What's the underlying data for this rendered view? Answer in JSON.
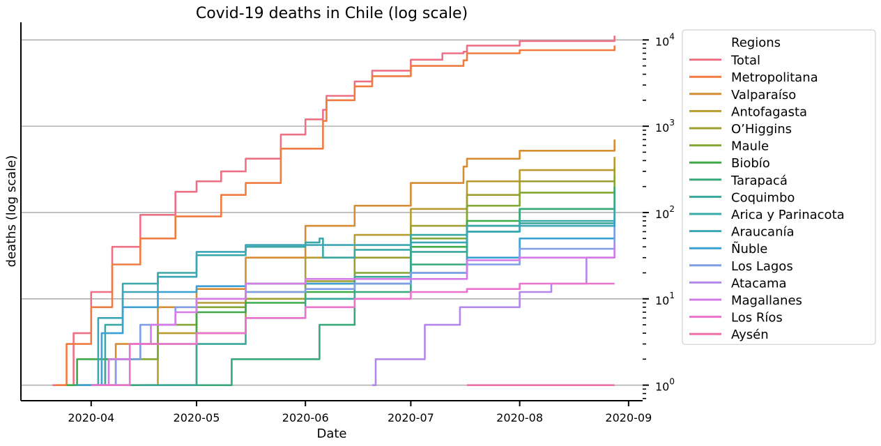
{
  "chart_data": {
    "type": "line",
    "title": "Covid-19 deaths in Chile (log scale)",
    "xlabel": "Date",
    "ylabel": "deaths (log scale)",
    "y_scale": "log",
    "y_axis_side": "right",
    "xlim": [
      "2020-03-12",
      "2020-09-05"
    ],
    "ylim": [
      0.66,
      16000
    ],
    "x_ticks": [
      "2020-04",
      "2020-05",
      "2020-06",
      "2020-07",
      "2020-08",
      "2020-09"
    ],
    "y_ticks": [
      1,
      10,
      100,
      1000,
      10000
    ],
    "y_tick_labels": [
      {
        "base": "10",
        "exp": "0"
      },
      {
        "base": "10",
        "exp": "1"
      },
      {
        "base": "10",
        "exp": "2"
      },
      {
        "base": "10",
        "exp": "3"
      },
      {
        "base": "10",
        "exp": "4"
      }
    ],
    "grid": "horizontal major",
    "legend": {
      "title": "Regions",
      "placement": "outside right"
    },
    "series": [
      {
        "name": "Total",
        "color": "#ee7085",
        "points": [
          [
            "2020-03-21",
            1
          ],
          [
            "2020-03-27",
            4
          ],
          [
            "2020-04-01",
            12
          ],
          [
            "2020-04-07",
            40
          ],
          [
            "2020-04-15",
            94
          ],
          [
            "2020-04-25",
            174
          ],
          [
            "2020-05-01",
            230
          ],
          [
            "2020-05-08",
            300
          ],
          [
            "2020-05-15",
            421
          ],
          [
            "2020-05-25",
            800
          ],
          [
            "2020-06-01",
            1200
          ],
          [
            "2020-06-06",
            1550
          ],
          [
            "2020-06-07",
            2250
          ],
          [
            "2020-06-15",
            3300
          ],
          [
            "2020-06-20",
            4400
          ],
          [
            "2020-07-01",
            5900
          ],
          [
            "2020-07-10",
            7000
          ],
          [
            "2020-07-16",
            7300
          ],
          [
            "2020-07-17",
            8600
          ],
          [
            "2020-08-01",
            9700
          ],
          [
            "2020-08-28",
            11200
          ]
        ]
      },
      {
        "name": "Metropolitana",
        "color": "#ef7b41",
        "points": [
          [
            "2020-03-22",
            1
          ],
          [
            "2020-03-25",
            3
          ],
          [
            "2020-04-01",
            8
          ],
          [
            "2020-04-07",
            25
          ],
          [
            "2020-04-15",
            50
          ],
          [
            "2020-04-25",
            90
          ],
          [
            "2020-05-08",
            160
          ],
          [
            "2020-05-15",
            220
          ],
          [
            "2020-05-25",
            550
          ],
          [
            "2020-06-06",
            1150
          ],
          [
            "2020-06-07",
            2000
          ],
          [
            "2020-06-15",
            2900
          ],
          [
            "2020-06-20",
            3800
          ],
          [
            "2020-07-01",
            5000
          ],
          [
            "2020-07-16",
            5800
          ],
          [
            "2020-07-17",
            7000
          ],
          [
            "2020-08-01",
            7600
          ],
          [
            "2020-08-28",
            8600
          ]
        ]
      },
      {
        "name": "Valparaíso",
        "color": "#d68c32",
        "points": [
          [
            "2020-03-31",
            1
          ],
          [
            "2020-04-08",
            3
          ],
          [
            "2020-04-20",
            8
          ],
          [
            "2020-05-01",
            13
          ],
          [
            "2020-05-15",
            30
          ],
          [
            "2020-06-01",
            70
          ],
          [
            "2020-06-15",
            120
          ],
          [
            "2020-07-01",
            220
          ],
          [
            "2020-07-16",
            340
          ],
          [
            "2020-07-17",
            420
          ],
          [
            "2020-08-01",
            520
          ],
          [
            "2020-08-28",
            700
          ]
        ]
      },
      {
        "name": "Antofagasta",
        "color": "#b99c30",
        "points": [
          [
            "2020-04-08",
            1
          ],
          [
            "2020-04-20",
            4
          ],
          [
            "2020-05-01",
            9
          ],
          [
            "2020-05-15",
            15
          ],
          [
            "2020-06-01",
            30
          ],
          [
            "2020-06-15",
            55
          ],
          [
            "2020-07-01",
            110
          ],
          [
            "2020-07-17",
            230
          ],
          [
            "2020-08-01",
            310
          ],
          [
            "2020-08-28",
            440
          ]
        ]
      },
      {
        "name": "O’Higgins",
        "color": "#9e9f31",
        "points": [
          [
            "2020-04-22",
            1
          ],
          [
            "2020-05-01",
            4
          ],
          [
            "2020-05-15",
            10
          ],
          [
            "2020-06-01",
            16
          ],
          [
            "2020-06-15",
            30
          ],
          [
            "2020-07-01",
            70
          ],
          [
            "2020-07-17",
            160
          ],
          [
            "2020-08-01",
            230
          ],
          [
            "2020-08-28",
            340
          ]
        ]
      },
      {
        "name": "Maule",
        "color": "#84a634",
        "points": [
          [
            "2020-03-27",
            1
          ],
          [
            "2020-04-05",
            2
          ],
          [
            "2020-04-20",
            5
          ],
          [
            "2020-05-01",
            8
          ],
          [
            "2020-05-15",
            12
          ],
          [
            "2020-06-01",
            15
          ],
          [
            "2020-06-15",
            20
          ],
          [
            "2020-07-01",
            50
          ],
          [
            "2020-07-17",
            120
          ],
          [
            "2020-08-01",
            170
          ],
          [
            "2020-08-28",
            260
          ]
        ]
      },
      {
        "name": "Biobío",
        "color": "#3eaa48",
        "points": [
          [
            "2020-03-25",
            1
          ],
          [
            "2020-03-28",
            2
          ],
          [
            "2020-04-15",
            3
          ],
          [
            "2020-05-01",
            7
          ],
          [
            "2020-05-15",
            9
          ],
          [
            "2020-06-01",
            12
          ],
          [
            "2020-06-15",
            15
          ],
          [
            "2020-07-01",
            40
          ],
          [
            "2020-07-17",
            80
          ],
          [
            "2020-08-01",
            110
          ],
          [
            "2020-08-28",
            200
          ]
        ]
      },
      {
        "name": "Tarapacá",
        "color": "#37a97d",
        "points": [
          [
            "2020-03-27",
            1
          ],
          [
            "2020-05-10",
            1
          ],
          [
            "2020-05-11",
            2
          ],
          [
            "2020-06-01",
            2
          ],
          [
            "2020-06-05",
            5
          ],
          [
            "2020-06-15",
            12
          ],
          [
            "2020-07-01",
            25
          ],
          [
            "2020-07-17",
            70
          ],
          [
            "2020-08-01",
            110
          ],
          [
            "2020-08-28",
            190
          ]
        ]
      },
      {
        "name": "Coquimbo",
        "color": "#39a89a",
        "points": [
          [
            "2020-04-15",
            1
          ],
          [
            "2020-05-01",
            3
          ],
          [
            "2020-05-15",
            6
          ],
          [
            "2020-06-01",
            10
          ],
          [
            "2020-06-15",
            18
          ],
          [
            "2020-07-01",
            35
          ],
          [
            "2020-07-17",
            60
          ],
          [
            "2020-08-01",
            75
          ],
          [
            "2020-08-28",
            125
          ]
        ]
      },
      {
        "name": "Arica y Parinacota",
        "color": "#3ba8a8",
        "points": [
          [
            "2020-04-01",
            1
          ],
          [
            "2020-04-05",
            5
          ],
          [
            "2020-04-10",
            15
          ],
          [
            "2020-04-20",
            20
          ],
          [
            "2020-05-01",
            32
          ],
          [
            "2020-05-15",
            40
          ],
          [
            "2020-06-01",
            45
          ],
          [
            "2020-06-05",
            50
          ],
          [
            "2020-06-06",
            30
          ],
          [
            "2020-06-15",
            37
          ],
          [
            "2020-07-01",
            55
          ],
          [
            "2020-07-17",
            70
          ],
          [
            "2020-08-01",
            80
          ],
          [
            "2020-08-28",
            105
          ]
        ]
      },
      {
        "name": "Araucanía",
        "color": "#3ca6b7",
        "points": [
          [
            "2020-03-28",
            1
          ],
          [
            "2020-04-03",
            6
          ],
          [
            "2020-04-10",
            12
          ],
          [
            "2020-04-20",
            18
          ],
          [
            "2020-05-01",
            35
          ],
          [
            "2020-05-15",
            42
          ],
          [
            "2020-06-01",
            42
          ],
          [
            "2020-06-15",
            42
          ],
          [
            "2020-07-01",
            45
          ],
          [
            "2020-07-17",
            60
          ],
          [
            "2020-08-01",
            70
          ],
          [
            "2020-08-28",
            95
          ]
        ]
      },
      {
        "name": "Ñuble",
        "color": "#3ba0d3",
        "points": [
          [
            "2020-03-29",
            1
          ],
          [
            "2020-04-04",
            4
          ],
          [
            "2020-04-10",
            8
          ],
          [
            "2020-04-20",
            12
          ],
          [
            "2020-05-01",
            14
          ],
          [
            "2020-05-15",
            15
          ],
          [
            "2020-06-01",
            15
          ],
          [
            "2020-06-15",
            15
          ],
          [
            "2020-07-01",
            20
          ],
          [
            "2020-07-17",
            30
          ],
          [
            "2020-08-01",
            50
          ],
          [
            "2020-08-28",
            80
          ]
        ]
      },
      {
        "name": "Los Lagos",
        "color": "#7e9ee6",
        "points": [
          [
            "2020-04-03",
            1
          ],
          [
            "2020-04-08",
            2
          ],
          [
            "2020-04-15",
            5
          ],
          [
            "2020-04-25",
            8
          ],
          [
            "2020-05-01",
            10
          ],
          [
            "2020-05-15",
            12
          ],
          [
            "2020-06-01",
            13
          ],
          [
            "2020-06-15",
            15
          ],
          [
            "2020-07-01",
            20
          ],
          [
            "2020-07-17",
            25
          ],
          [
            "2020-08-01",
            38
          ],
          [
            "2020-08-28",
            68
          ]
        ]
      },
      {
        "name": "Atacama",
        "color": "#b287ea",
        "points": [
          [
            "2020-06-20",
            1
          ],
          [
            "2020-06-21",
            2
          ],
          [
            "2020-07-01",
            2
          ],
          [
            "2020-07-05",
            5
          ],
          [
            "2020-07-15",
            8
          ],
          [
            "2020-08-01",
            12
          ],
          [
            "2020-08-10",
            15
          ],
          [
            "2020-08-20",
            30
          ],
          [
            "2020-08-28",
            45
          ]
        ]
      },
      {
        "name": "Magallanes",
        "color": "#d67ae8",
        "points": [
          [
            "2020-04-02",
            1
          ],
          [
            "2020-04-06",
            2
          ],
          [
            "2020-04-12",
            3
          ],
          [
            "2020-04-18",
            5
          ],
          [
            "2020-04-25",
            7
          ],
          [
            "2020-05-01",
            10
          ],
          [
            "2020-05-15",
            15
          ],
          [
            "2020-06-01",
            17
          ],
          [
            "2020-07-01",
            17
          ],
          [
            "2020-07-16",
            17
          ],
          [
            "2020-07-17",
            28
          ],
          [
            "2020-08-01",
            30
          ],
          [
            "2020-08-28",
            38
          ]
        ]
      },
      {
        "name": "Los Ríos",
        "color": "#eb72cd",
        "points": [
          [
            "2020-04-01",
            1
          ],
          [
            "2020-04-12",
            3
          ],
          [
            "2020-05-01",
            4
          ],
          [
            "2020-05-15",
            6
          ],
          [
            "2020-06-01",
            8
          ],
          [
            "2020-06-15",
            10
          ],
          [
            "2020-07-01",
            12
          ],
          [
            "2020-07-17",
            13
          ],
          [
            "2020-08-01",
            15
          ],
          [
            "2020-08-28",
            15
          ]
        ]
      },
      {
        "name": "Aysén",
        "color": "#ef6fa8",
        "points": [
          [
            "2020-07-17",
            1
          ],
          [
            "2020-08-28",
            1
          ]
        ]
      }
    ]
  }
}
